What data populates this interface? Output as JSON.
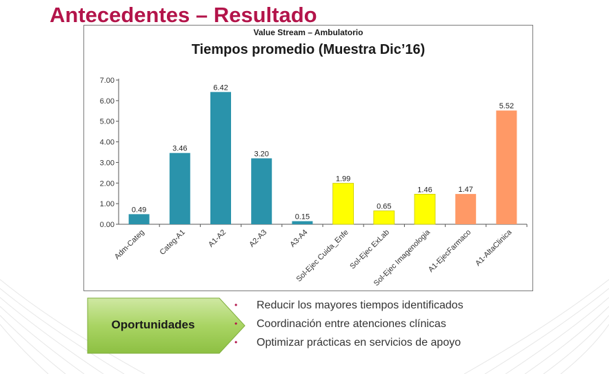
{
  "slide": {
    "title": "Antecedentes – Resultado",
    "accent_color": "#b3144a"
  },
  "chart_data": {
    "type": "bar",
    "supertitle": "Value Stream – Ambulatorio",
    "title": "Tiempos promedio (Muestra Dic’16)",
    "categories": [
      "Adm-Categ",
      "Categ-A1",
      "A1-A2",
      "A2-A3",
      "A3-A4",
      "Sol-Ejec Cuida_Enfe",
      "Sol-Ejec ExLab",
      "Sol-Ejec Imagenologia",
      "A1-EjecFarmaco",
      "A1-AltaClinica"
    ],
    "values": [
      0.49,
      3.46,
      6.42,
      3.2,
      0.15,
      1.99,
      0.65,
      1.46,
      1.47,
      5.52
    ],
    "data_labels": [
      "0.49",
      "3.46",
      "6.42",
      "3.20",
      "0.15",
      "1.99",
      "0.65",
      "1.46",
      "1.47",
      "5.52"
    ],
    "bar_colors": [
      "#2a93ab",
      "#2a93ab",
      "#2a93ab",
      "#2a93ab",
      "#2a93ab",
      "#ffff00",
      "#ffff00",
      "#ffff00",
      "#ff9966",
      "#ff9966"
    ],
    "y_ticks": [
      "0.00",
      "1.00",
      "2.00",
      "3.00",
      "4.00",
      "5.00",
      "6.00",
      "7.00"
    ],
    "ylim": [
      0,
      7
    ],
    "grid": false,
    "legend": "none"
  },
  "opportunities": {
    "label": "Oportunidades",
    "box_color": "#9ccc55",
    "items": [
      "Reducir los mayores tiempos identificados",
      "Coordinación entre atenciones clínicas",
      "Optimizar prácticas en servicios de apoyo"
    ]
  }
}
